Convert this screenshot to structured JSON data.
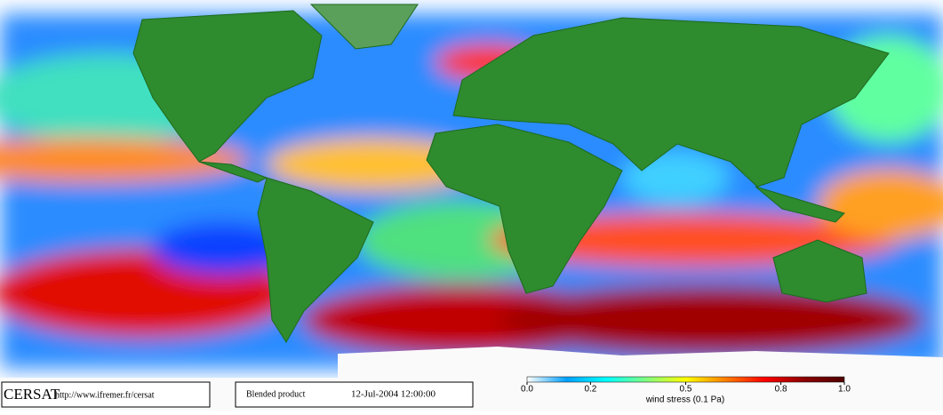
{
  "footer": {
    "logo": "CERSAT",
    "url": "http://www.ifremer.fr/cersat",
    "product": "Blended product",
    "timestamp": "12-Jul-2004 12:00:00"
  },
  "colorbar": {
    "label": "wind stress (0.1 Pa)",
    "range": [
      0,
      1
    ],
    "ticks": [
      {
        "value": 0,
        "label": "0.0"
      },
      0.2,
      0.5,
      0.8,
      {
        "value": 1,
        "label": "1.0"
      }
    ],
    "colors": [
      "#ffffff",
      "#00a0ff",
      "#00ffff",
      "#80ff80",
      "#ffff00",
      "#ff8000",
      "#ff0000",
      "#8b0000",
      "#500000"
    ]
  }
}
